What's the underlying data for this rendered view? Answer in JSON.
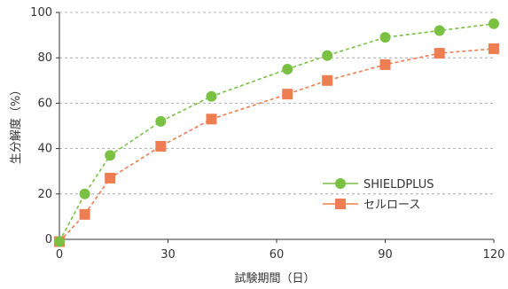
{
  "chart_data": {
    "type": "line",
    "xlabel": "試験期間（日）",
    "ylabel": "生分解度（%）",
    "xlim": [
      0,
      120
    ],
    "ylim": [
      0,
      100
    ],
    "xticks": [
      0,
      30,
      60,
      90,
      120
    ],
    "yticks": [
      0,
      20,
      40,
      60,
      80,
      100
    ],
    "grid": "horizontal-dashed",
    "legend_position": "bottom-right",
    "series": [
      {
        "name": "SHIELDPLUS",
        "color": "#7ac143",
        "line_style": "dashed",
        "marker": "circle",
        "x": [
          0,
          7,
          14,
          28,
          42,
          63,
          74,
          90,
          105,
          120
        ],
        "y": [
          -1,
          20,
          37,
          52,
          63,
          75,
          81,
          89,
          92,
          95
        ]
      },
      {
        "name": "セルロース",
        "color": "#ef7d52",
        "line_style": "dashed",
        "marker": "square",
        "x": [
          0,
          7,
          14,
          28,
          42,
          63,
          74,
          90,
          105,
          120
        ],
        "y": [
          -1,
          11,
          27,
          41,
          53,
          64,
          70,
          77,
          82,
          84
        ]
      }
    ]
  }
}
